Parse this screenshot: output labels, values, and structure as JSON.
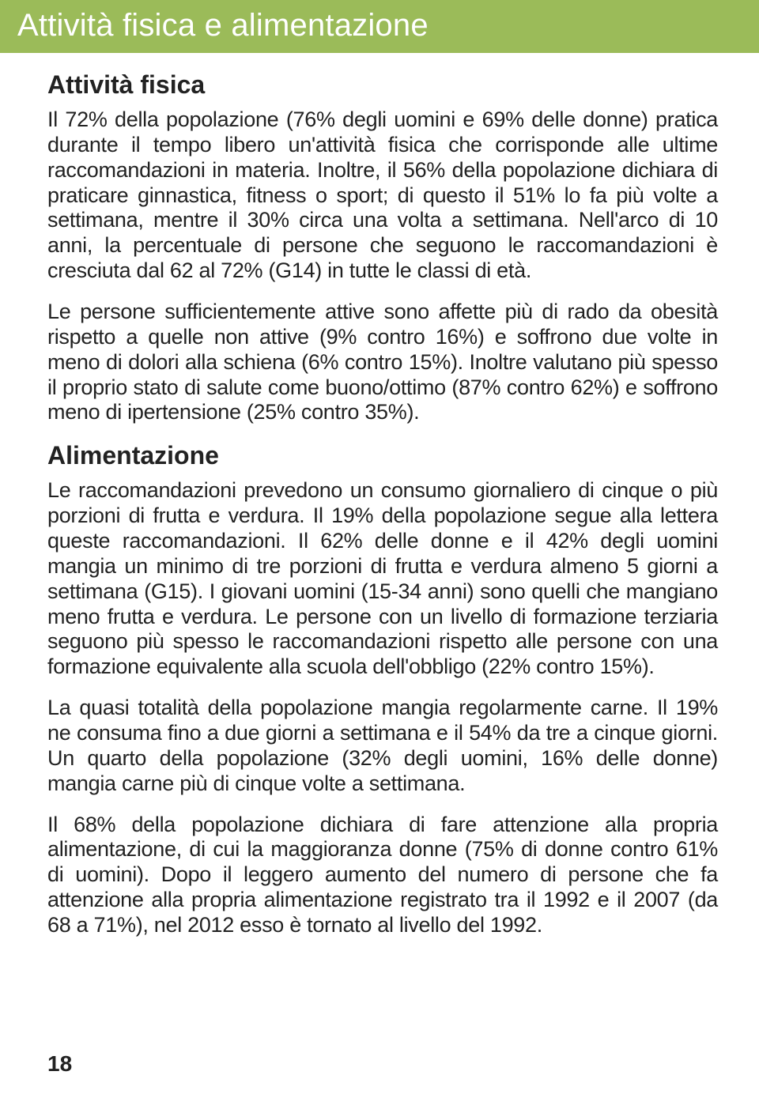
{
  "header": {
    "title": "Attività fisica e alimentazione"
  },
  "sections": {
    "s1": {
      "heading": "Attività fisica",
      "p1": "Il 72% della popolazione (76% degli uomini e 69% delle donne) pratica durante il tempo libero un'attività fisica che corrisponde alle ultime raccomandazioni in materia. Inoltre, il 56% della popolazione dichiara di praticare ginnastica, fitness o sport; di questo il 51% lo fa più volte a settimana, mentre il 30% circa una volta a settimana. Nell'arco di 10 anni, la percentuale di persone che seguono le raccomandazioni è cresciuta dal 62 al 72% (G14) in tutte le classi di età.",
      "p2": "Le persone sufficientemente attive sono affette più di rado da obesità rispetto a quelle non attive (9% contro 16%) e soffrono due volte in meno di dolori alla schiena (6% contro 15%). Inoltre valutano più spesso il proprio stato di salute come buono/ottimo (87% contro 62%) e soffrono meno di ipertensione (25% contro 35%)."
    },
    "s2": {
      "heading": "Alimentazione",
      "p1": "Le raccomandazioni prevedono un consumo giornaliero di cinque o più porzioni di frutta e verdura. Il 19% della popolazione segue alla lettera queste raccomandazioni. Il 62% delle donne e il 42% degli uomini mangia un minimo di tre porzioni di frutta e verdura almeno 5 giorni a settimana (G15). I giovani uomini (15-34 anni) sono quelli che mangiano meno frutta e verdura. Le persone con un livello di formazione terziaria seguono più spesso le raccomandazioni rispetto alle persone con una formazione equivalente alla scuola dell'obbligo (22% contro 15%).",
      "p2": "La quasi totalità della popolazione mangia regolarmente carne. Il 19% ne consuma fino a due giorni a settimana e il 54% da tre a cinque giorni. Un quarto della popolazione (32% degli uomini, 16% delle donne) mangia carne più di cinque volte a settimana.",
      "p3": "Il 68% della popolazione dichiara di fare attenzione alla propria alimentazione, di cui la maggioranza donne (75% di donne contro 61% di uomini). Dopo il leggero aumento del numero di persone che fa attenzione alla propria alimentazione registrato tra il 1992 e il 2007 (da 68 a 71%), nel 2012 esso è tornato al livello del 1992."
    }
  },
  "page_number": "18"
}
